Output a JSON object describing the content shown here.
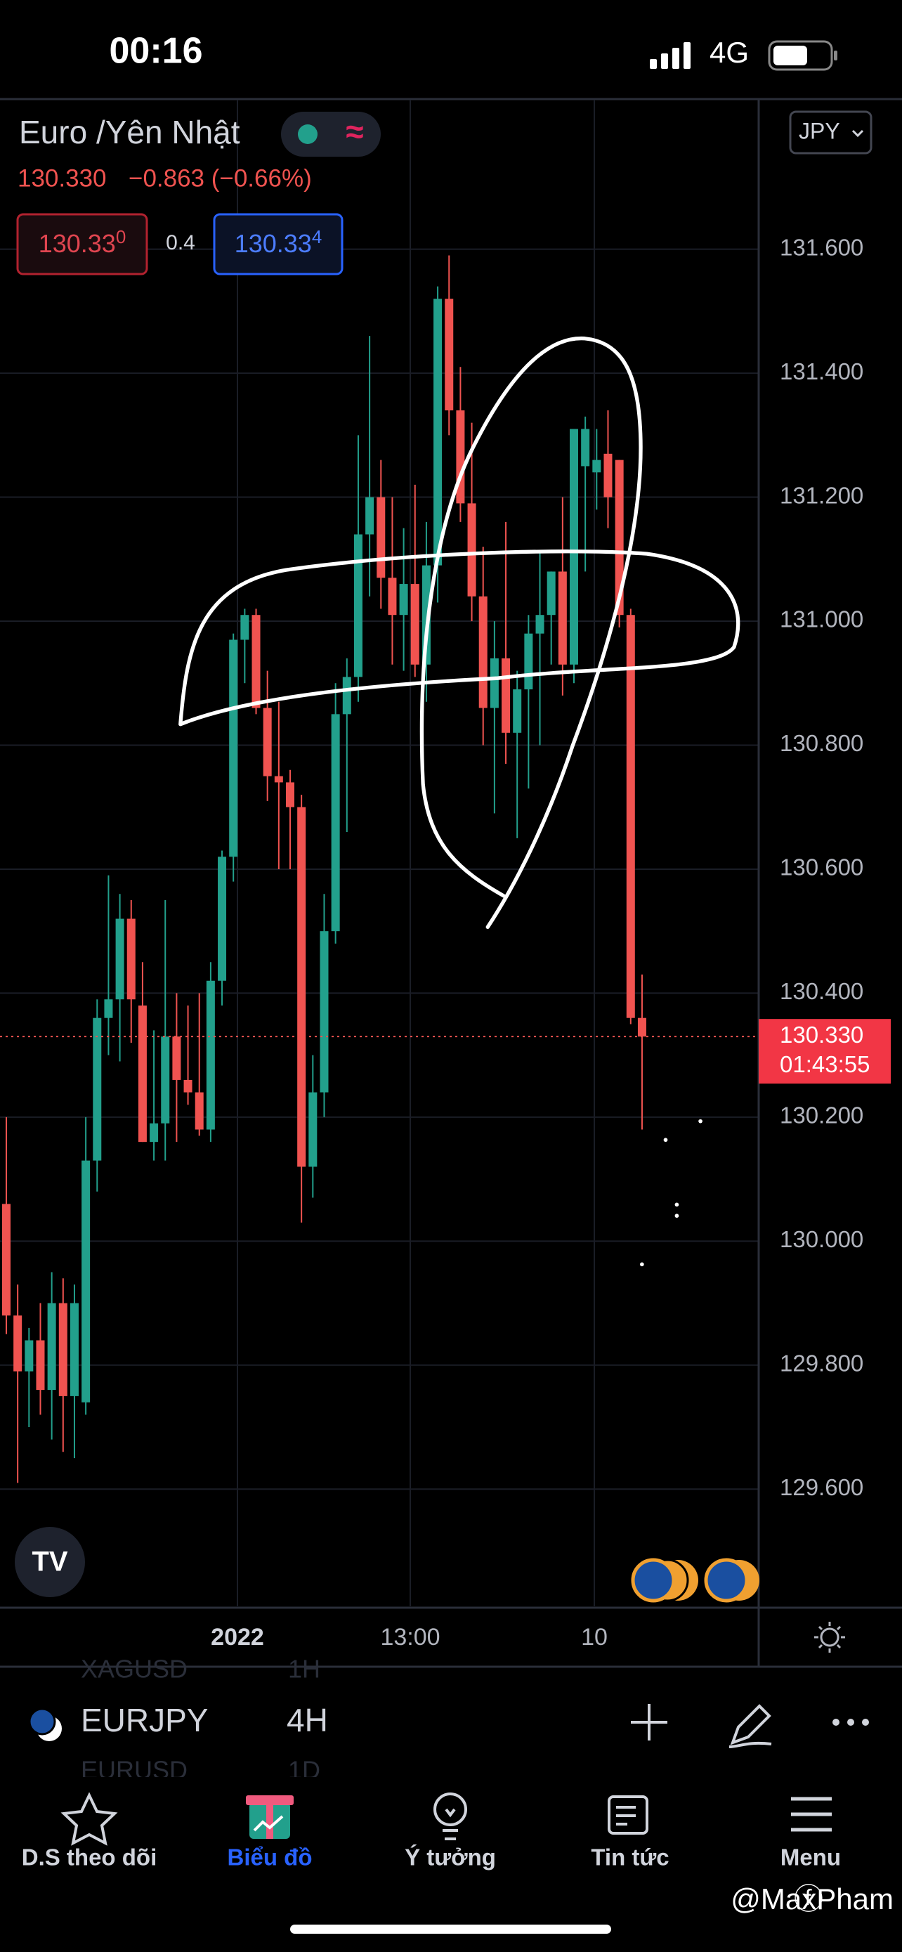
{
  "status_bar": {
    "time": "00:16",
    "network": "4G"
  },
  "header": {
    "symbol_name": "Euro /Yên Nhật",
    "last": "130.330",
    "change": "−0.863 (−0.66%)",
    "bid": {
      "main": "130.33",
      "pip": "0"
    },
    "spread": "0.4",
    "ask": {
      "main": "130.33",
      "pip": "4"
    },
    "currency": "JPY"
  },
  "chart_data": {
    "type": "candlestick",
    "open": [
      130.06,
      129.88,
      129.79,
      129.84,
      129.76,
      129.9,
      129.75,
      129.74,
      130.13,
      130.36,
      130.39,
      130.52,
      130.38,
      130.16,
      130.19,
      130.33,
      130.26,
      130.24,
      130.18,
      130.42,
      130.62,
      130.97,
      131.01,
      130.86,
      130.75,
      130.74,
      130.7,
      130.12,
      130.24,
      130.5,
      130.85,
      130.91,
      131.14,
      131.2,
      131.07,
      131.01,
      131.06,
      130.93,
      131.09,
      131.52,
      131.34,
      131.19,
      131.04,
      130.86,
      130.94,
      130.82,
      130.89,
      130.98,
      131.01,
      131.08,
      130.93,
      131.25,
      131.24,
      131.27,
      131.26,
      131.01,
      130.36
    ],
    "high": [
      130.2,
      129.93,
      129.86,
      129.9,
      129.95,
      129.94,
      129.93,
      130.2,
      130.39,
      130.59,
      130.56,
      130.55,
      130.45,
      130.34,
      130.55,
      130.4,
      130.38,
      130.4,
      130.45,
      130.63,
      130.98,
      131.02,
      131.02,
      130.92,
      130.87,
      130.76,
      130.72,
      130.3,
      130.56,
      130.9,
      130.94,
      131.3,
      131.46,
      131.26,
      131.2,
      131.15,
      131.22,
      131.16,
      131.54,
      131.59,
      131.41,
      131.32,
      131.12,
      131.0,
      131.16,
      130.92,
      131.01,
      131.11,
      131.08,
      131.2,
      131.31,
      131.33,
      131.31,
      131.34,
      131.26,
      131.02,
      130.43
    ],
    "low": [
      129.85,
      129.61,
      129.7,
      129.72,
      129.68,
      129.66,
      129.65,
      129.72,
      130.08,
      130.3,
      130.29,
      130.32,
      130.16,
      130.13,
      130.13,
      130.16,
      130.22,
      130.17,
      130.16,
      130.38,
      130.58,
      130.9,
      130.85,
      130.71,
      130.6,
      130.6,
      130.03,
      130.07,
      130.2,
      130.48,
      130.66,
      130.87,
      131.04,
      131.02,
      130.93,
      130.92,
      130.91,
      130.87,
      131.03,
      131.3,
      131.16,
      131.0,
      130.8,
      130.69,
      130.77,
      130.65,
      130.73,
      130.8,
      130.93,
      130.88,
      130.9,
      131.08,
      131.18,
      131.15,
      130.99,
      130.35,
      130.18
    ],
    "close": [
      129.88,
      129.79,
      129.84,
      129.76,
      129.9,
      129.75,
      129.9,
      130.13,
      130.36,
      130.39,
      130.52,
      130.39,
      130.16,
      130.19,
      130.33,
      130.26,
      130.24,
      130.18,
      130.42,
      130.62,
      130.97,
      131.01,
      130.86,
      130.75,
      130.74,
      130.7,
      130.12,
      130.24,
      130.5,
      130.85,
      130.91,
      131.14,
      131.2,
      131.07,
      131.01,
      131.06,
      130.93,
      131.09,
      131.52,
      131.34,
      131.19,
      131.04,
      130.86,
      130.94,
      130.82,
      130.89,
      130.98,
      131.01,
      131.08,
      130.93,
      131.31,
      131.31,
      131.26,
      131.2,
      131.01,
      130.36,
      130.33
    ],
    "up_color": "#22a08c",
    "down_color": "#f05350",
    "ylim": [
      129.411,
      131.841
    ],
    "yticks": [
      {
        "value": 129.6,
        "label": "129.600"
      },
      {
        "value": 129.8,
        "label": "129.800"
      },
      {
        "value": 130.0,
        "label": "130.000"
      },
      {
        "value": 130.2,
        "label": "130.200"
      },
      {
        "value": 130.4,
        "label": "130.400"
      },
      {
        "value": 130.6,
        "label": "130.600"
      },
      {
        "value": 130.8,
        "label": "130.800"
      },
      {
        "value": 131.0,
        "label": "131.000"
      },
      {
        "value": 131.2,
        "label": "131.200"
      },
      {
        "value": 131.4,
        "label": "131.400"
      },
      {
        "value": 131.6,
        "label": "131.600"
      }
    ],
    "grid": true,
    "last_price": {
      "value": 130.33,
      "label": "130.330"
    },
    "countdown": "01:43:55",
    "time_labels": [
      "2022",
      "13:00",
      "10"
    ]
  },
  "toolbar": {
    "symbol": "EURJPY",
    "interval": "4H",
    "prev_symbol": "XAGUSD",
    "prev_interval": "1H",
    "next_symbol": "EURUSD",
    "next_interval": "1D"
  },
  "nav": [
    "D.S theo dõi",
    "Biểu đồ",
    "Ý tưởng",
    "Tin tức",
    "Menu"
  ],
  "watermark": "@MaxPham"
}
